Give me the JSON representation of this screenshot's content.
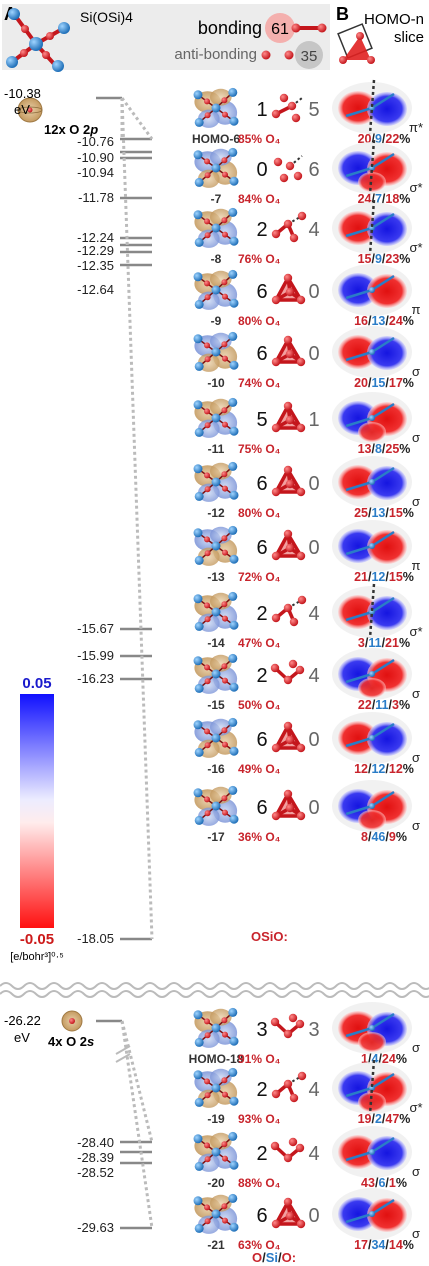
{
  "panel_a": {
    "label": "A",
    "molecule": "Si(OSi)4",
    "legend": {
      "bonding_label": "bonding",
      "bonding_count": "61",
      "antibonding_label": "anti-bonding",
      "antibonding_count": "35"
    },
    "groups": [
      {
        "energy": "-10.38",
        "unit": "eV",
        "label": "12x O 2p"
      },
      {
        "energy": "-26.22",
        "unit": "eV",
        "label": "4x O 2s"
      }
    ],
    "levels_upper": [
      "-10.76",
      "-10.90",
      "-10.94",
      "-11.78",
      "-12.24",
      "-12.29",
      "-12.35",
      "-12.64",
      "-15.67",
      "-15.99",
      "-16.23",
      "-18.05"
    ],
    "levels_lower": [
      "-28.40",
      "-28.39",
      "-28.52",
      "-29.63"
    ],
    "colorbar": {
      "max": "0.05",
      "min": "-0.05",
      "unit": "[e/bohr³]⁰·⁵",
      "max_color": "#1a1aff",
      "min_color": "#ff1a1a"
    }
  },
  "orbitals": [
    {
      "label": "HOMO-6",
      "pct": "85% O₄",
      "bond": "1",
      "anti": "5",
      "motif": "dimer-dashed"
    },
    {
      "label": "-7",
      "pct": "84% O₄",
      "bond": "0",
      "anti": "6",
      "motif": "dots-dashed"
    },
    {
      "label": "-8",
      "pct": "76% O₄",
      "bond": "2",
      "anti": "4",
      "motif": "chain-dashed"
    },
    {
      "label": "-9",
      "pct": "80% O₄",
      "bond": "6",
      "anti": "0",
      "motif": "tetra"
    },
    {
      "label": "-10",
      "pct": "74% O₄",
      "bond": "6",
      "anti": "0",
      "motif": "tetra"
    },
    {
      "label": "-11",
      "pct": "75% O₄",
      "bond": "5",
      "anti": "1",
      "motif": "tetra"
    },
    {
      "label": "-12",
      "pct": "80% O₄",
      "bond": "6",
      "anti": "0",
      "motif": "tetra"
    },
    {
      "label": "-13",
      "pct": "72% O₄",
      "bond": "6",
      "anti": "0",
      "motif": "tetra"
    },
    {
      "label": "-14",
      "pct": "47% O₄",
      "bond": "2",
      "anti": "4",
      "motif": "chain-dashed"
    },
    {
      "label": "-15",
      "pct": "50% O₄",
      "bond": "2",
      "anti": "4",
      "motif": "chain"
    },
    {
      "label": "-16",
      "pct": "49% O₄",
      "bond": "6",
      "anti": "0",
      "motif": "tetra"
    },
    {
      "label": "-17",
      "pct": "36% O₄",
      "bond": "6",
      "anti": "0",
      "motif": "tetra"
    },
    {
      "label": "HOMO-18",
      "pct": "91% O₄",
      "bond": "3",
      "anti": "3",
      "motif": "chain"
    },
    {
      "label": "-19",
      "pct": "93% O₄",
      "bond": "2",
      "anti": "4",
      "motif": "chain-dashed"
    },
    {
      "label": "-20",
      "pct": "88% O₄",
      "bond": "2",
      "anti": "4",
      "motif": "chain"
    },
    {
      "label": "-21",
      "pct": "63% O₄",
      "bond": "6",
      "anti": "0",
      "motif": "tetra"
    }
  ],
  "panel_b": {
    "label": "B",
    "title_line1": "HOMO-n",
    "title_line2": "slice",
    "osio_label": "OSiO:",
    "osio_label_2": "O/Si/O:",
    "slices": [
      {
        "a": "20",
        "b": "9",
        "c": "22",
        "sym": "π*"
      },
      {
        "a": "24",
        "b": "7",
        "c": "18",
        "sym": "σ*"
      },
      {
        "a": "15",
        "b": "9",
        "c": "23",
        "sym": "σ*"
      },
      {
        "a": "16",
        "b": "13",
        "c": "24",
        "sym": "π"
      },
      {
        "a": "20",
        "b": "15",
        "c": "17",
        "sym": "σ"
      },
      {
        "a": "13",
        "b": "8",
        "c": "25",
        "sym": "σ"
      },
      {
        "a": "25",
        "b": "13",
        "c": "15",
        "sym": "σ"
      },
      {
        "a": "21",
        "b": "12",
        "c": "15",
        "sym": "π"
      },
      {
        "a": "3",
        "b": "11",
        "c": "21",
        "sym": "σ*"
      },
      {
        "a": "22",
        "b": "11",
        "c": "3",
        "sym": "σ"
      },
      {
        "a": "12",
        "b": "12",
        "c": "12",
        "sym": "σ"
      },
      {
        "a": "8",
        "b": "46",
        "c": "9",
        "sym": "σ"
      },
      {
        "a": "1",
        "b": "4",
        "c": "24",
        "sym": "σ"
      },
      {
        "a": "19",
        "b": "2",
        "c": "47",
        "sym": "σ*"
      },
      {
        "a": "43",
        "b": "6",
        "c": "1",
        "sym": "σ"
      },
      {
        "a": "17",
        "b": "34",
        "c": "14",
        "sym": "σ"
      }
    ]
  }
}
